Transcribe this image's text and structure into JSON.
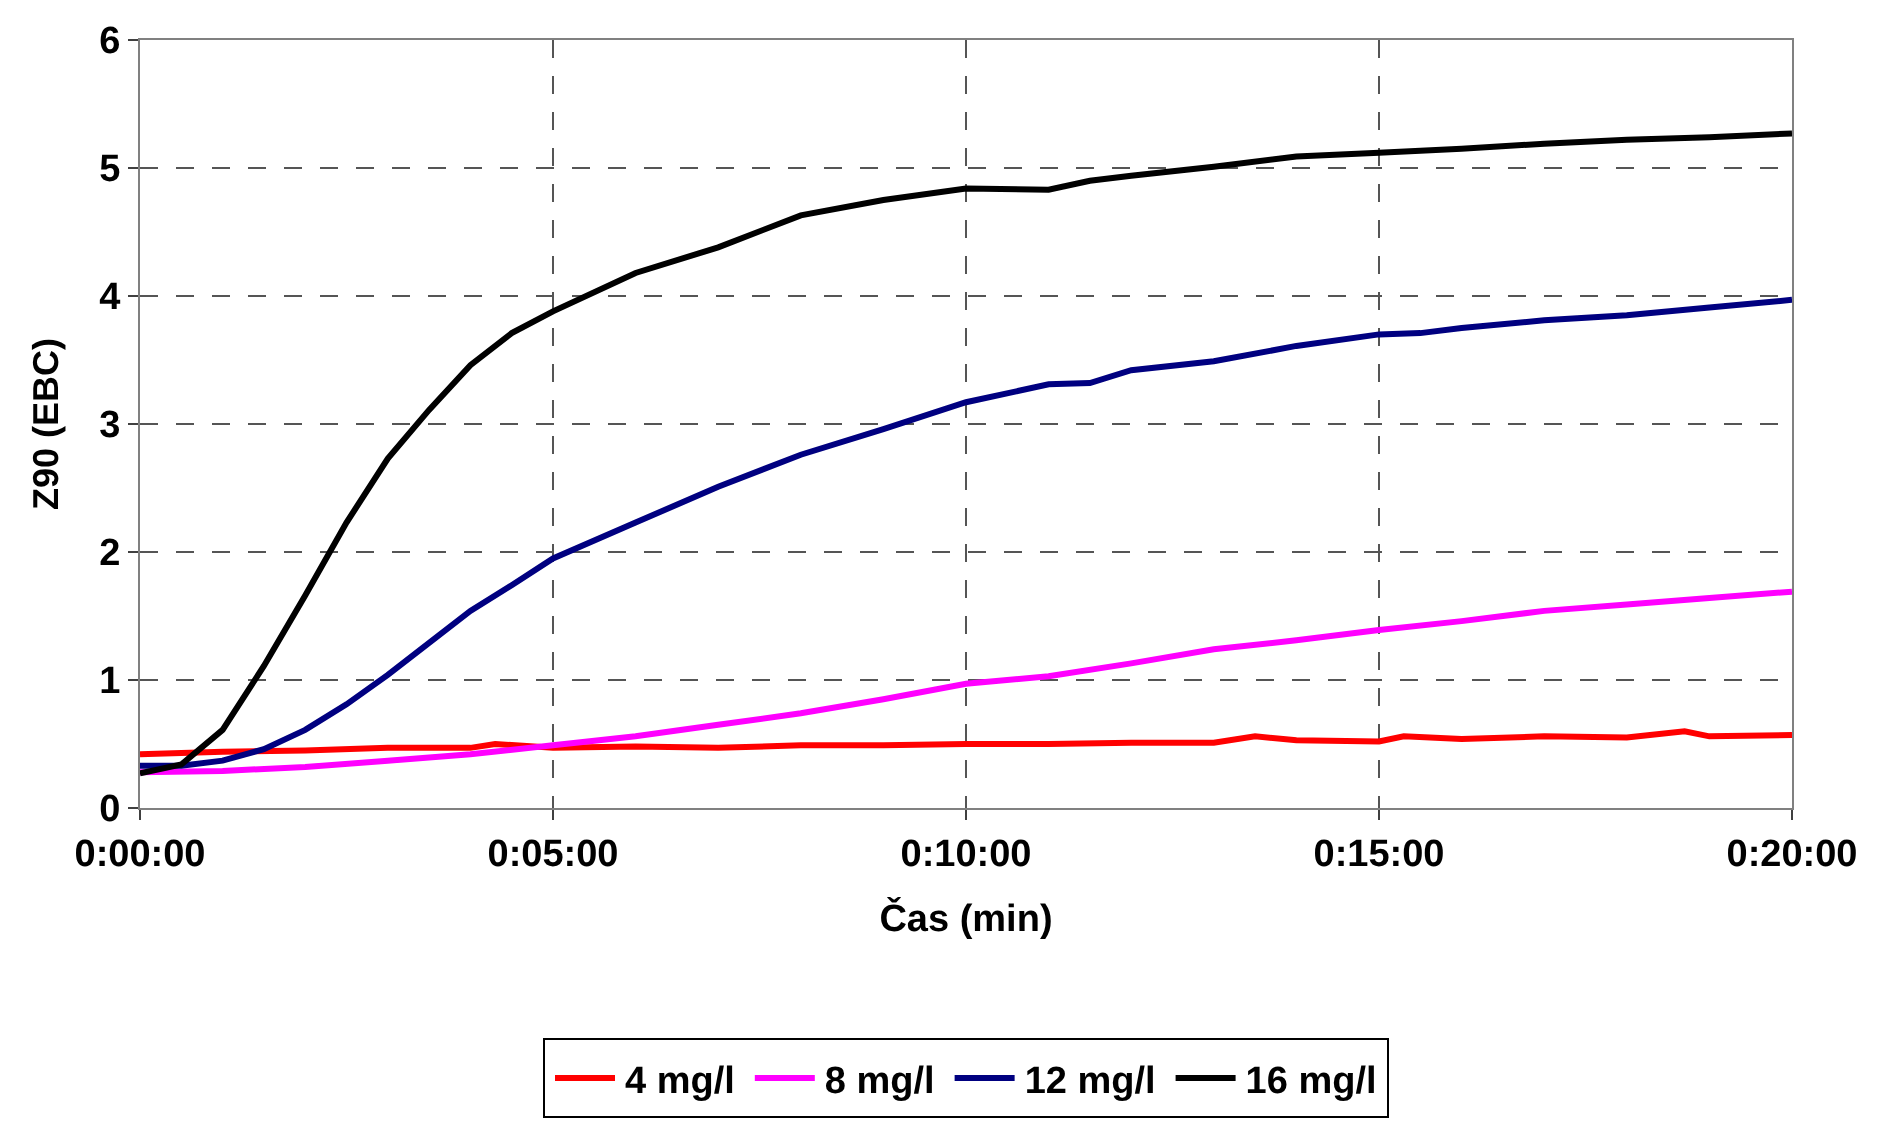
{
  "chart_data": {
    "type": "line",
    "xlabel": "Čas (min)",
    "ylabel": "Z90 (EBC)",
    "xlim": [
      0,
      20
    ],
    "xticks": [
      {
        "value": 0,
        "label": "0:00:00"
      },
      {
        "value": 5,
        "label": "0:05:00"
      },
      {
        "value": 10,
        "label": "0:10:00"
      },
      {
        "value": 15,
        "label": "0:15:00"
      },
      {
        "value": 20,
        "label": "0:20:00"
      }
    ],
    "ylim": [
      0,
      6
    ],
    "yticks": [
      0,
      1,
      2,
      3,
      4,
      5,
      6
    ],
    "grid": true,
    "legend": "bottom",
    "marker": "none",
    "line_style": "solid",
    "series": [
      {
        "name": "4 mg/l",
        "color": "#ff0000",
        "x": [
          0,
          1,
          2,
          3,
          4,
          4.3,
          5,
          6,
          7,
          8,
          9,
          10,
          11,
          12,
          13,
          13.5,
          14,
          15,
          15.3,
          16,
          17,
          18,
          18.7,
          19,
          20
        ],
        "values": [
          0.42,
          0.44,
          0.45,
          0.47,
          0.47,
          0.5,
          0.47,
          0.48,
          0.47,
          0.49,
          0.49,
          0.5,
          0.5,
          0.51,
          0.51,
          0.56,
          0.53,
          0.52,
          0.56,
          0.54,
          0.56,
          0.55,
          0.6,
          0.56,
          0.57
        ]
      },
      {
        "name": "8 mg/l",
        "color": "#ff00ff",
        "x": [
          0,
          1,
          2,
          3,
          4,
          5,
          6,
          7,
          8,
          9,
          10,
          11,
          12,
          13,
          14,
          15,
          16,
          17,
          18,
          19,
          20
        ],
        "values": [
          0.28,
          0.29,
          0.32,
          0.37,
          0.42,
          0.49,
          0.56,
          0.65,
          0.74,
          0.85,
          0.97,
          1.03,
          1.13,
          1.24,
          1.31,
          1.39,
          1.46,
          1.54,
          1.59,
          1.64,
          1.69
        ]
      },
      {
        "name": "12 mg/l",
        "color": "#000080",
        "x": [
          0,
          0.5,
          1,
          1.5,
          2,
          2.5,
          3,
          3.5,
          4,
          4.5,
          5,
          6,
          7,
          8,
          9,
          10,
          11,
          11.5,
          12,
          13,
          14,
          15,
          15.5,
          16,
          17,
          18,
          19,
          20
        ],
        "values": [
          0.33,
          0.33,
          0.37,
          0.46,
          0.61,
          0.81,
          1.04,
          1.29,
          1.54,
          1.74,
          1.95,
          2.23,
          2.51,
          2.76,
          2.96,
          3.17,
          3.31,
          3.32,
          3.42,
          3.49,
          3.61,
          3.7,
          3.71,
          3.75,
          3.81,
          3.85,
          3.91,
          3.97
        ]
      },
      {
        "name": "16 mg/l",
        "color": "#000000",
        "x": [
          0,
          0.5,
          1,
          1.5,
          2,
          2.5,
          3,
          3.5,
          4,
          4.5,
          5,
          6,
          7,
          8,
          9,
          10,
          11,
          11.5,
          12,
          13,
          14,
          15,
          16,
          17,
          18,
          19,
          20
        ],
        "values": [
          0.27,
          0.34,
          0.61,
          1.11,
          1.66,
          2.23,
          2.73,
          3.11,
          3.46,
          3.71,
          3.88,
          4.18,
          4.38,
          4.63,
          4.75,
          4.84,
          4.83,
          4.9,
          4.94,
          5.01,
          5.09,
          5.12,
          5.15,
          5.19,
          5.22,
          5.24,
          5.27
        ]
      }
    ]
  }
}
